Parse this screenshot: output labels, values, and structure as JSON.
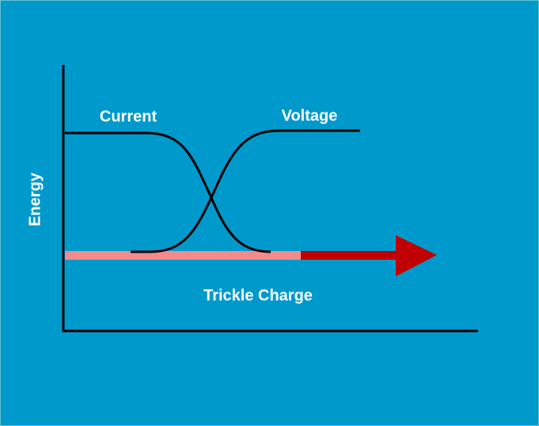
{
  "axis": {
    "y_label": "Energy"
  },
  "curves": {
    "current": "Current",
    "voltage": "Voltage"
  },
  "arrow": {
    "label": "Trickle Charge"
  }
}
